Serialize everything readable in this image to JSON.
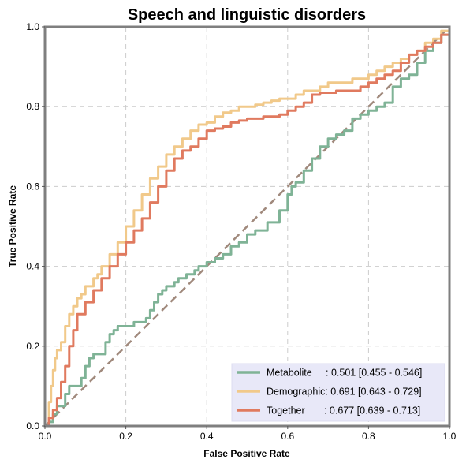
{
  "chart_data": {
    "type": "line",
    "title": "Speech and linguistic disorders",
    "xlabel": "False Positive Rate",
    "ylabel": "True Positive Rate",
    "xlim": [
      0,
      1
    ],
    "ylim": [
      0,
      1
    ],
    "x_ticks": [
      "0.0",
      "0.2",
      "0.4",
      "0.6",
      "0.8",
      "1.0"
    ],
    "y_ticks": [
      "0.0",
      "0.2",
      "0.4",
      "0.6",
      "0.8",
      "1.0"
    ],
    "grid": true,
    "legend_position": "lower-right",
    "diagonal_color": "#a0897c",
    "series": [
      {
        "name": "Metabolite",
        "legend_label": "Metabolite     : 0.501 [0.455 - 0.546]",
        "color": "#7fb396",
        "x": [
          0,
          0.01,
          0.02,
          0.03,
          0.05,
          0.06,
          0.07,
          0.09,
          0.1,
          0.11,
          0.12,
          0.13,
          0.15,
          0.16,
          0.17,
          0.18,
          0.2,
          0.22,
          0.25,
          0.26,
          0.27,
          0.28,
          0.29,
          0.3,
          0.32,
          0.33,
          0.35,
          0.37,
          0.38,
          0.4,
          0.42,
          0.44,
          0.46,
          0.48,
          0.5,
          0.52,
          0.55,
          0.58,
          0.6,
          0.61,
          0.62,
          0.64,
          0.66,
          0.68,
          0.7,
          0.72,
          0.74,
          0.76,
          0.78,
          0.8,
          0.82,
          0.84,
          0.86,
          0.88,
          0.89,
          0.9,
          0.92,
          0.94,
          0.96,
          0.98,
          1.0
        ],
        "y": [
          0,
          0.01,
          0.03,
          0.05,
          0.08,
          0.1,
          0.1,
          0.12,
          0.15,
          0.17,
          0.18,
          0.18,
          0.21,
          0.23,
          0.24,
          0.25,
          0.25,
          0.26,
          0.27,
          0.29,
          0.31,
          0.33,
          0.34,
          0.35,
          0.36,
          0.37,
          0.38,
          0.39,
          0.4,
          0.41,
          0.42,
          0.43,
          0.45,
          0.46,
          0.48,
          0.49,
          0.51,
          0.54,
          0.58,
          0.6,
          0.61,
          0.64,
          0.67,
          0.7,
          0.72,
          0.73,
          0.74,
          0.77,
          0.78,
          0.79,
          0.8,
          0.81,
          0.85,
          0.87,
          0.87,
          0.88,
          0.91,
          0.94,
          0.96,
          0.98,
          1.0
        ]
      },
      {
        "name": "Demographic",
        "legend_label": "Demographic: 0.691 [0.643 - 0.729]",
        "color": "#f1c98a",
        "x": [
          0,
          0.01,
          0.015,
          0.02,
          0.025,
          0.03,
          0.04,
          0.05,
          0.06,
          0.07,
          0.08,
          0.09,
          0.1,
          0.12,
          0.13,
          0.14,
          0.16,
          0.18,
          0.2,
          0.22,
          0.24,
          0.26,
          0.28,
          0.3,
          0.32,
          0.34,
          0.36,
          0.38,
          0.4,
          0.42,
          0.44,
          0.46,
          0.48,
          0.5,
          0.52,
          0.54,
          0.56,
          0.58,
          0.6,
          0.62,
          0.64,
          0.66,
          0.68,
          0.7,
          0.72,
          0.74,
          0.76,
          0.78,
          0.8,
          0.82,
          0.84,
          0.86,
          0.88,
          0.9,
          0.92,
          0.94,
          0.96,
          0.98,
          1.0
        ],
        "y": [
          0,
          0.06,
          0.1,
          0.14,
          0.17,
          0.19,
          0.21,
          0.25,
          0.28,
          0.3,
          0.32,
          0.33,
          0.35,
          0.37,
          0.38,
          0.4,
          0.43,
          0.46,
          0.5,
          0.54,
          0.58,
          0.62,
          0.65,
          0.68,
          0.7,
          0.72,
          0.74,
          0.755,
          0.76,
          0.775,
          0.785,
          0.79,
          0.8,
          0.8,
          0.805,
          0.81,
          0.815,
          0.82,
          0.82,
          0.83,
          0.84,
          0.84,
          0.85,
          0.86,
          0.86,
          0.86,
          0.87,
          0.87,
          0.88,
          0.89,
          0.9,
          0.91,
          0.92,
          0.93,
          0.94,
          0.96,
          0.97,
          0.99,
          1.0
        ]
      },
      {
        "name": "Together",
        "legend_label": "Together       : 0.677 [0.639 - 0.713]",
        "color": "#e07a5f",
        "x": [
          0,
          0.01,
          0.02,
          0.03,
          0.04,
          0.05,
          0.06,
          0.07,
          0.08,
          0.1,
          0.12,
          0.14,
          0.16,
          0.18,
          0.2,
          0.22,
          0.24,
          0.26,
          0.28,
          0.3,
          0.32,
          0.34,
          0.36,
          0.38,
          0.4,
          0.42,
          0.44,
          0.46,
          0.48,
          0.5,
          0.52,
          0.54,
          0.56,
          0.58,
          0.6,
          0.62,
          0.64,
          0.66,
          0.68,
          0.7,
          0.72,
          0.74,
          0.76,
          0.78,
          0.8,
          0.82,
          0.84,
          0.86,
          0.88,
          0.9,
          0.92,
          0.94,
          0.96,
          0.98,
          1.0
        ],
        "y": [
          0,
          0.02,
          0.04,
          0.07,
          0.11,
          0.15,
          0.2,
          0.24,
          0.28,
          0.31,
          0.34,
          0.37,
          0.4,
          0.43,
          0.46,
          0.49,
          0.52,
          0.56,
          0.6,
          0.64,
          0.67,
          0.69,
          0.7,
          0.72,
          0.74,
          0.745,
          0.75,
          0.76,
          0.765,
          0.77,
          0.77,
          0.775,
          0.775,
          0.78,
          0.79,
          0.8,
          0.81,
          0.83,
          0.835,
          0.835,
          0.84,
          0.84,
          0.84,
          0.85,
          0.86,
          0.87,
          0.88,
          0.89,
          0.91,
          0.93,
          0.94,
          0.95,
          0.96,
          0.98,
          1.0
        ]
      }
    ]
  }
}
